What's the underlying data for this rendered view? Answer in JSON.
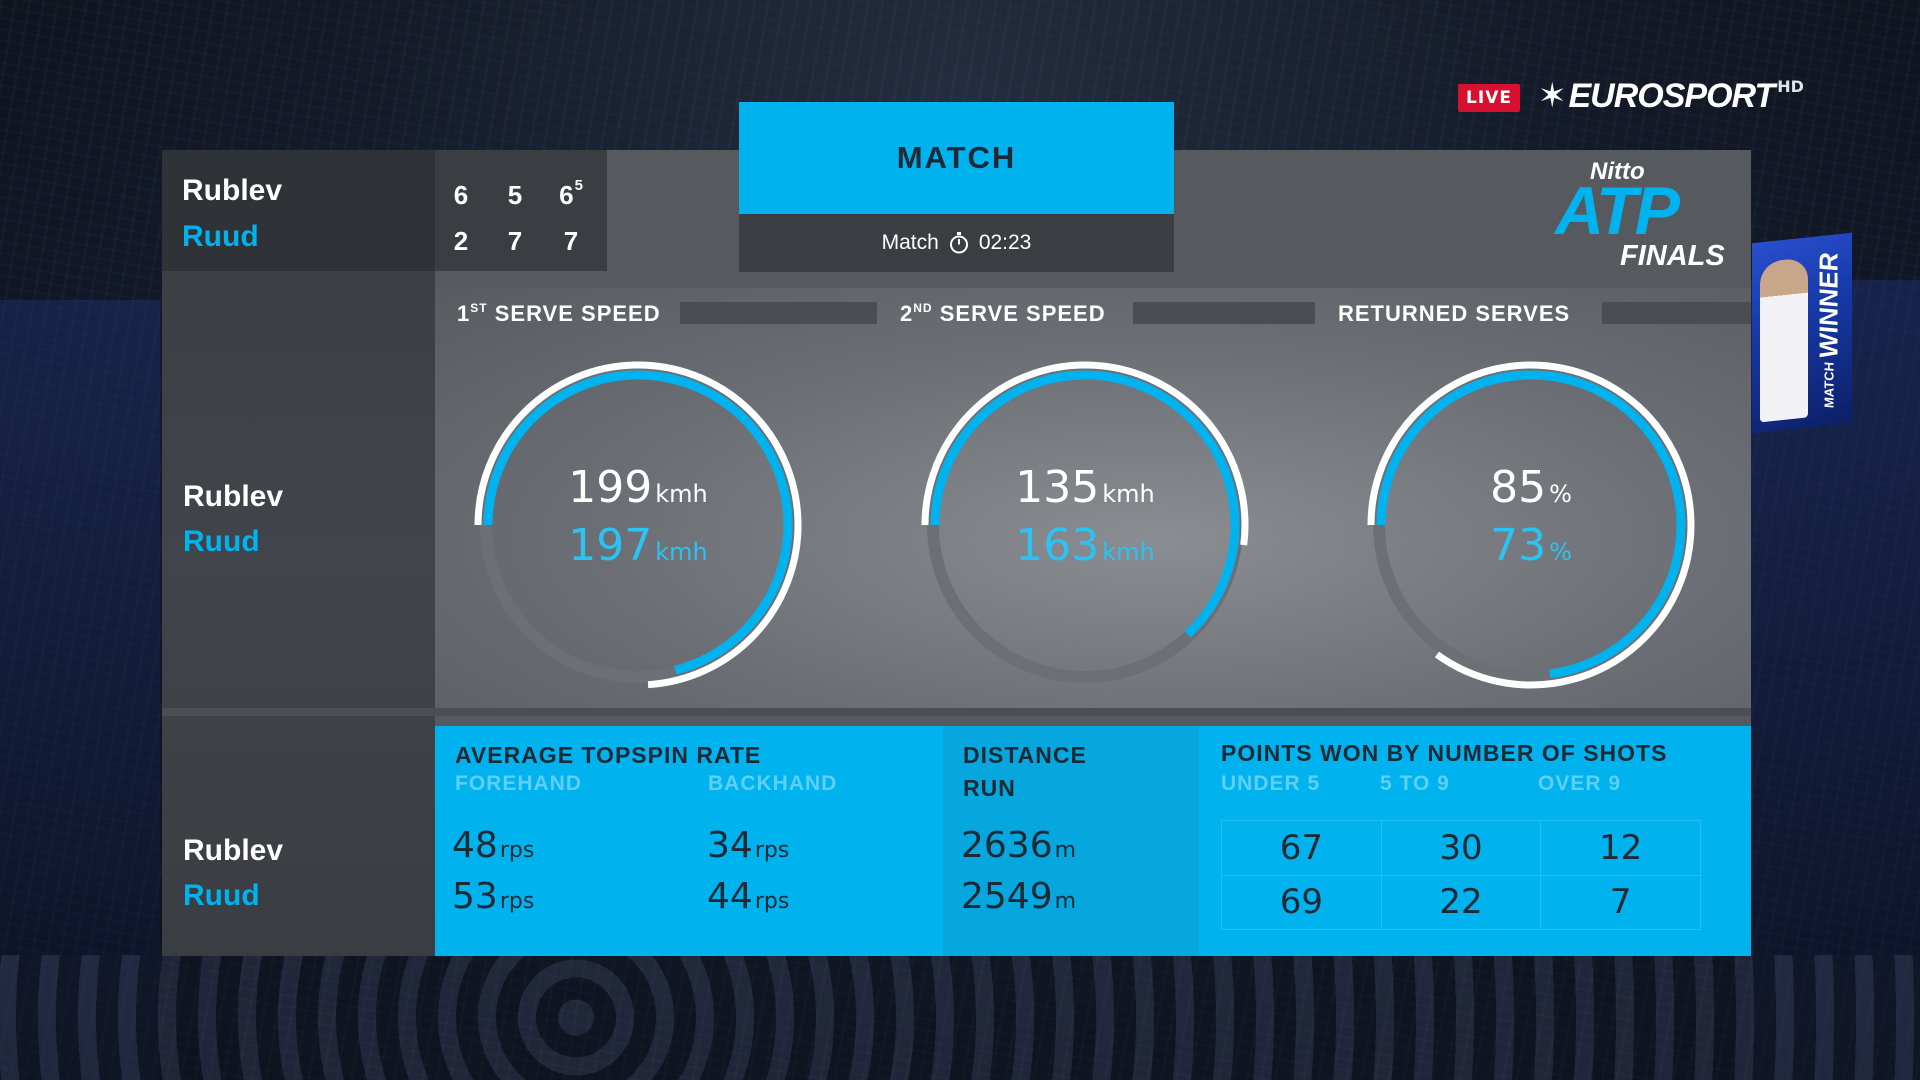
{
  "broadcast": {
    "live_label": "LIVE",
    "brand": "EUROSPORT",
    "brand_suffix": "HD",
    "background_screen_text": "WINNER",
    "background_screen_small": "MATCH"
  },
  "players": [
    {
      "name": "Rublev"
    },
    {
      "name": "Ruud"
    }
  ],
  "scoreboard": {
    "rows": [
      {
        "name": "Rublev",
        "sets": [
          "6",
          "5",
          "6"
        ],
        "tiebreak": "5"
      },
      {
        "name": "Ruud",
        "sets": [
          "2",
          "7",
          "7"
        ]
      }
    ]
  },
  "match_tab": {
    "title": "MATCH",
    "sub_label": "Match",
    "duration": "02:23"
  },
  "logo": {
    "line1": "Nitto",
    "line2": "ATP",
    "line3": "FINALS"
  },
  "serve_row": {
    "names": [
      "Rublev",
      "Ruud"
    ],
    "gauges": [
      {
        "title": "SERVE SPEED",
        "ordinal_num": "1",
        "ordinal_sup": "ST",
        "p1_value": "199",
        "p1_unit": "kmh",
        "p1_fill": 0.74,
        "p2_value": "197",
        "p2_unit": "kmh",
        "p2_fill": 0.71
      },
      {
        "title": "SERVE SPEED",
        "ordinal_num": "2",
        "ordinal_sup": "ND",
        "p1_value": "135",
        "p1_unit": "kmh",
        "p1_fill": 0.52,
        "p2_value": "163",
        "p2_unit": "kmh",
        "p2_fill": 0.63
      },
      {
        "title": "RETURNED SERVES",
        "p1_value": "85",
        "p1_unit": "%",
        "p1_fill": 0.85,
        "p2_value": "73",
        "p2_unit": "%",
        "p2_fill": 0.73
      }
    ]
  },
  "stats_row": {
    "names": [
      "Rublev",
      "Ruud"
    ],
    "topspin": {
      "title": "AVERAGE TOPSPIN RATE",
      "forehand_label": "FOREHAND",
      "backhand_label": "BACKHAND",
      "forehand": [
        {
          "value": "48",
          "unit": "rps"
        },
        {
          "value": "53",
          "unit": "rps"
        }
      ],
      "backhand": [
        {
          "value": "34",
          "unit": "rps"
        },
        {
          "value": "44",
          "unit": "rps"
        }
      ]
    },
    "distance": {
      "title_line1": "DISTANCE",
      "title_line2": "RUN",
      "values": [
        {
          "value": "2636",
          "unit": "m"
        },
        {
          "value": "2549",
          "unit": "m"
        }
      ]
    },
    "points_by_shots": {
      "title": "POINTS WON BY NUMBER OF SHOTS",
      "columns": [
        "UNDER 5",
        "5 TO 9",
        "OVER 9"
      ],
      "rows": [
        [
          "67",
          "30",
          "12"
        ],
        [
          "69",
          "22",
          "7"
        ]
      ]
    }
  },
  "colors": {
    "accent": "#00b3ee",
    "player2": "#2bc3f3",
    "live_red": "#d6102e",
    "panel": "#56595e",
    "gauge_p1": "#ffffff",
    "gauge_track": "#6c6f75"
  }
}
